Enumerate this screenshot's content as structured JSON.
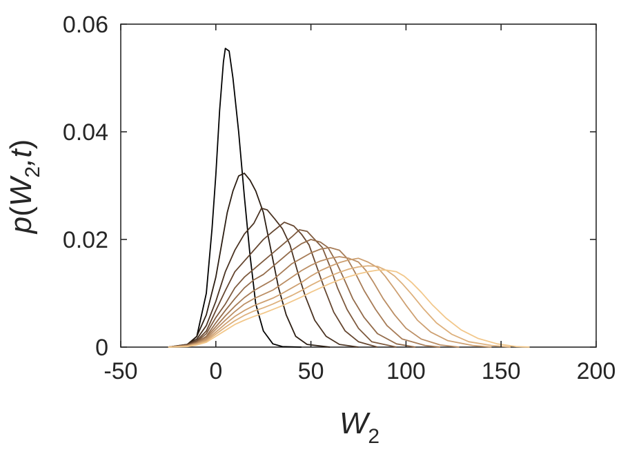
{
  "chart_data": {
    "type": "line",
    "xlabel": {
      "main": "W",
      "sub": "2"
    },
    "ylabel": {
      "prefix": "p",
      "open": "(",
      "main": "W",
      "sub": "2",
      "rest": ",t",
      "close": ")"
    },
    "xlim": [
      -50,
      200
    ],
    "ylim": [
      0,
      0.06
    ],
    "xticks": [
      "-50",
      "0",
      "50",
      "100",
      "150",
      "200"
    ],
    "yticks": [
      "0",
      "0.02",
      "0.04",
      "0.06"
    ],
    "grid": false,
    "legend": "none",
    "series": [
      {
        "color": "#000000",
        "points": [
          [
            -25,
            0
          ],
          [
            -15,
            0.0003
          ],
          [
            -10,
            0.002
          ],
          [
            -5,
            0.01
          ],
          [
            -2,
            0.022
          ],
          [
            0,
            0.032
          ],
          [
            2,
            0.044
          ],
          [
            4,
            0.053
          ],
          [
            5,
            0.0555
          ],
          [
            7,
            0.055
          ],
          [
            9,
            0.05
          ],
          [
            12,
            0.04
          ],
          [
            15,
            0.028
          ],
          [
            18,
            0.017
          ],
          [
            21,
            0.008
          ],
          [
            25,
            0.003
          ],
          [
            30,
            0.0006
          ],
          [
            35,
            0.0001
          ],
          [
            45,
            0
          ]
        ]
      },
      {
        "color": "#2b1d12",
        "points": [
          [
            -25,
            0
          ],
          [
            -15,
            0.0005
          ],
          [
            -10,
            0.002
          ],
          [
            -5,
            0.006
          ],
          [
            0,
            0.013
          ],
          [
            3,
            0.019
          ],
          [
            6,
            0.025
          ],
          [
            9,
            0.029
          ],
          [
            12,
            0.0318
          ],
          [
            15,
            0.0323
          ],
          [
            18,
            0.031
          ],
          [
            21,
            0.029
          ],
          [
            25,
            0.025
          ],
          [
            29,
            0.018
          ],
          [
            33,
            0.011
          ],
          [
            37,
            0.006
          ],
          [
            42,
            0.002
          ],
          [
            48,
            0.0005
          ],
          [
            60,
            0
          ]
        ]
      },
      {
        "color": "#4a3322",
        "points": [
          [
            -25,
            0
          ],
          [
            -15,
            0.0005
          ],
          [
            -10,
            0.0015
          ],
          [
            -5,
            0.004
          ],
          [
            0,
            0.0085
          ],
          [
            5,
            0.014
          ],
          [
            10,
            0.018
          ],
          [
            15,
            0.021
          ],
          [
            20,
            0.023
          ],
          [
            24,
            0.0258
          ],
          [
            27,
            0.0255
          ],
          [
            31,
            0.0238
          ],
          [
            35,
            0.022
          ],
          [
            39,
            0.019
          ],
          [
            43,
            0.014
          ],
          [
            47,
            0.0095
          ],
          [
            52,
            0.005
          ],
          [
            58,
            0.002
          ],
          [
            65,
            0.0005
          ],
          [
            75,
            0
          ]
        ]
      },
      {
        "color": "#654630",
        "points": [
          [
            -25,
            0
          ],
          [
            -15,
            0.0004
          ],
          [
            -10,
            0.0012
          ],
          [
            -5,
            0.003
          ],
          [
            0,
            0.0068
          ],
          [
            5,
            0.0105
          ],
          [
            10,
            0.014
          ],
          [
            15,
            0.016
          ],
          [
            20,
            0.018
          ],
          [
            25,
            0.02
          ],
          [
            30,
            0.0215
          ],
          [
            36,
            0.0232
          ],
          [
            41,
            0.0225
          ],
          [
            45,
            0.021
          ],
          [
            49,
            0.019
          ],
          [
            53,
            0.015
          ],
          [
            57,
            0.011
          ],
          [
            62,
            0.0065
          ],
          [
            68,
            0.003
          ],
          [
            75,
            0.001
          ],
          [
            85,
            0
          ]
        ]
      },
      {
        "color": "#7e5a3e",
        "points": [
          [
            -25,
            0
          ],
          [
            -15,
            0.0004
          ],
          [
            -10,
            0.001
          ],
          [
            -5,
            0.0025
          ],
          [
            0,
            0.0055
          ],
          [
            5,
            0.008
          ],
          [
            10,
            0.011
          ],
          [
            15,
            0.013
          ],
          [
            20,
            0.0145
          ],
          [
            25,
            0.016
          ],
          [
            30,
            0.0175
          ],
          [
            35,
            0.019
          ],
          [
            40,
            0.0205
          ],
          [
            44,
            0.0218
          ],
          [
            48,
            0.0215
          ],
          [
            52,
            0.02
          ],
          [
            56,
            0.0185
          ],
          [
            60,
            0.015
          ],
          [
            64,
            0.011
          ],
          [
            69,
            0.007
          ],
          [
            75,
            0.0035
          ],
          [
            82,
            0.001
          ],
          [
            95,
            0
          ]
        ]
      },
      {
        "color": "#936b4a",
        "points": [
          [
            -25,
            0
          ],
          [
            -15,
            0.0003
          ],
          [
            -10,
            0.0009
          ],
          [
            -5,
            0.002
          ],
          [
            0,
            0.0045
          ],
          [
            5,
            0.0068
          ],
          [
            10,
            0.009
          ],
          [
            15,
            0.011
          ],
          [
            20,
            0.0125
          ],
          [
            25,
            0.0135
          ],
          [
            30,
            0.015
          ],
          [
            35,
            0.0165
          ],
          [
            40,
            0.018
          ],
          [
            45,
            0.0192
          ],
          [
            50,
            0.02
          ],
          [
            55,
            0.0195
          ],
          [
            59,
            0.0185
          ],
          [
            63,
            0.016
          ],
          [
            67,
            0.013
          ],
          [
            72,
            0.009
          ],
          [
            78,
            0.0055
          ],
          [
            85,
            0.0025
          ],
          [
            95,
            0.0006
          ],
          [
            105,
            0
          ]
        ]
      },
      {
        "color": "#a77c57",
        "points": [
          [
            -25,
            0
          ],
          [
            -15,
            0.0003
          ],
          [
            -10,
            0.0008
          ],
          [
            -5,
            0.0018
          ],
          [
            0,
            0.0038
          ],
          [
            5,
            0.0058
          ],
          [
            10,
            0.0076
          ],
          [
            15,
            0.0092
          ],
          [
            20,
            0.0105
          ],
          [
            25,
            0.0115
          ],
          [
            30,
            0.0125
          ],
          [
            35,
            0.014
          ],
          [
            40,
            0.0155
          ],
          [
            45,
            0.0165
          ],
          [
            50,
            0.0175
          ],
          [
            55,
            0.0182
          ],
          [
            60,
            0.0185
          ],
          [
            65,
            0.018
          ],
          [
            69,
            0.0165
          ],
          [
            73,
            0.014
          ],
          [
            78,
            0.0105
          ],
          [
            84,
            0.007
          ],
          [
            90,
            0.004
          ],
          [
            98,
            0.0015
          ],
          [
            110,
            0.0003
          ],
          [
            118,
            0
          ]
        ]
      },
      {
        "color": "#bb8e64",
        "points": [
          [
            -25,
            0
          ],
          [
            -15,
            0.0002
          ],
          [
            -10,
            0.0007
          ],
          [
            -5,
            0.0015
          ],
          [
            0,
            0.0033
          ],
          [
            5,
            0.005
          ],
          [
            10,
            0.0066
          ],
          [
            15,
            0.008
          ],
          [
            20,
            0.009
          ],
          [
            25,
            0.0098
          ],
          [
            30,
            0.0106
          ],
          [
            35,
            0.0118
          ],
          [
            40,
            0.013
          ],
          [
            45,
            0.0142
          ],
          [
            50,
            0.0152
          ],
          [
            55,
            0.016
          ],
          [
            60,
            0.0165
          ],
          [
            65,
            0.0168
          ],
          [
            70,
            0.0165
          ],
          [
            75,
            0.0158
          ],
          [
            79,
            0.0142
          ],
          [
            83,
            0.012
          ],
          [
            88,
            0.009
          ],
          [
            94,
            0.006
          ],
          [
            100,
            0.0035
          ],
          [
            108,
            0.0015
          ],
          [
            118,
            0.0004
          ],
          [
            128,
            0
          ]
        ]
      },
      {
        "color": "#cd9f70",
        "points": [
          [
            -25,
            0
          ],
          [
            -15,
            0.0002
          ],
          [
            -10,
            0.0006
          ],
          [
            -5,
            0.0013
          ],
          [
            0,
            0.0028
          ],
          [
            5,
            0.0043
          ],
          [
            10,
            0.0057
          ],
          [
            15,
            0.0068
          ],
          [
            20,
            0.0077
          ],
          [
            25,
            0.0084
          ],
          [
            30,
            0.0091
          ],
          [
            35,
            0.01
          ],
          [
            40,
            0.011
          ],
          [
            45,
            0.012
          ],
          [
            50,
            0.0132
          ],
          [
            55,
            0.0142
          ],
          [
            60,
            0.015
          ],
          [
            65,
            0.0157
          ],
          [
            70,
            0.0162
          ],
          [
            75,
            0.0165
          ],
          [
            80,
            0.0158
          ],
          [
            85,
            0.0148
          ],
          [
            89,
            0.0132
          ],
          [
            94,
            0.0108
          ],
          [
            100,
            0.0078
          ],
          [
            106,
            0.005
          ],
          [
            113,
            0.0028
          ],
          [
            122,
            0.0012
          ],
          [
            135,
            0.0003
          ],
          [
            145,
            0
          ]
        ]
      },
      {
        "color": "#ddb07c",
        "points": [
          [
            -25,
            0
          ],
          [
            -15,
            0.0002
          ],
          [
            -10,
            0.0005
          ],
          [
            -5,
            0.0011
          ],
          [
            0,
            0.0024
          ],
          [
            5,
            0.0037
          ],
          [
            10,
            0.0049
          ],
          [
            15,
            0.0059
          ],
          [
            20,
            0.0067
          ],
          [
            25,
            0.0073
          ],
          [
            30,
            0.008
          ],
          [
            35,
            0.0088
          ],
          [
            40,
            0.0096
          ],
          [
            45,
            0.0105
          ],
          [
            50,
            0.0115
          ],
          [
            55,
            0.0124
          ],
          [
            60,
            0.0132
          ],
          [
            65,
            0.0139
          ],
          [
            70,
            0.0145
          ],
          [
            75,
            0.0149
          ],
          [
            80,
            0.0151
          ],
          [
            85,
            0.015
          ],
          [
            90,
            0.0142
          ],
          [
            94,
            0.0132
          ],
          [
            98,
            0.0118
          ],
          [
            103,
            0.0098
          ],
          [
            109,
            0.0072
          ],
          [
            116,
            0.0045
          ],
          [
            124,
            0.0024
          ],
          [
            133,
            0.001
          ],
          [
            145,
            0.0003
          ],
          [
            155,
            0
          ]
        ]
      },
      {
        "color": "#f2c78a",
        "points": [
          [
            -25,
            0
          ],
          [
            -15,
            0.0001
          ],
          [
            -10,
            0.0004
          ],
          [
            -5,
            0.0009
          ],
          [
            0,
            0.002
          ],
          [
            5,
            0.0031
          ],
          [
            10,
            0.0042
          ],
          [
            15,
            0.005
          ],
          [
            20,
            0.0057
          ],
          [
            25,
            0.0063
          ],
          [
            30,
            0.007
          ],
          [
            35,
            0.0077
          ],
          [
            40,
            0.0085
          ],
          [
            45,
            0.0093
          ],
          [
            50,
            0.0102
          ],
          [
            55,
            0.011
          ],
          [
            60,
            0.0118
          ],
          [
            65,
            0.0125
          ],
          [
            70,
            0.0131
          ],
          [
            75,
            0.0136
          ],
          [
            80,
            0.014
          ],
          [
            85,
            0.0143
          ],
          [
            90,
            0.0143
          ],
          [
            95,
            0.014
          ],
          [
            99,
            0.0132
          ],
          [
            103,
            0.012
          ],
          [
            108,
            0.0102
          ],
          [
            114,
            0.0078
          ],
          [
            121,
            0.0054
          ],
          [
            129,
            0.0032
          ],
          [
            138,
            0.0016
          ],
          [
            148,
            0.0006
          ],
          [
            158,
            0.0001
          ],
          [
            165,
            0
          ]
        ]
      }
    ]
  }
}
